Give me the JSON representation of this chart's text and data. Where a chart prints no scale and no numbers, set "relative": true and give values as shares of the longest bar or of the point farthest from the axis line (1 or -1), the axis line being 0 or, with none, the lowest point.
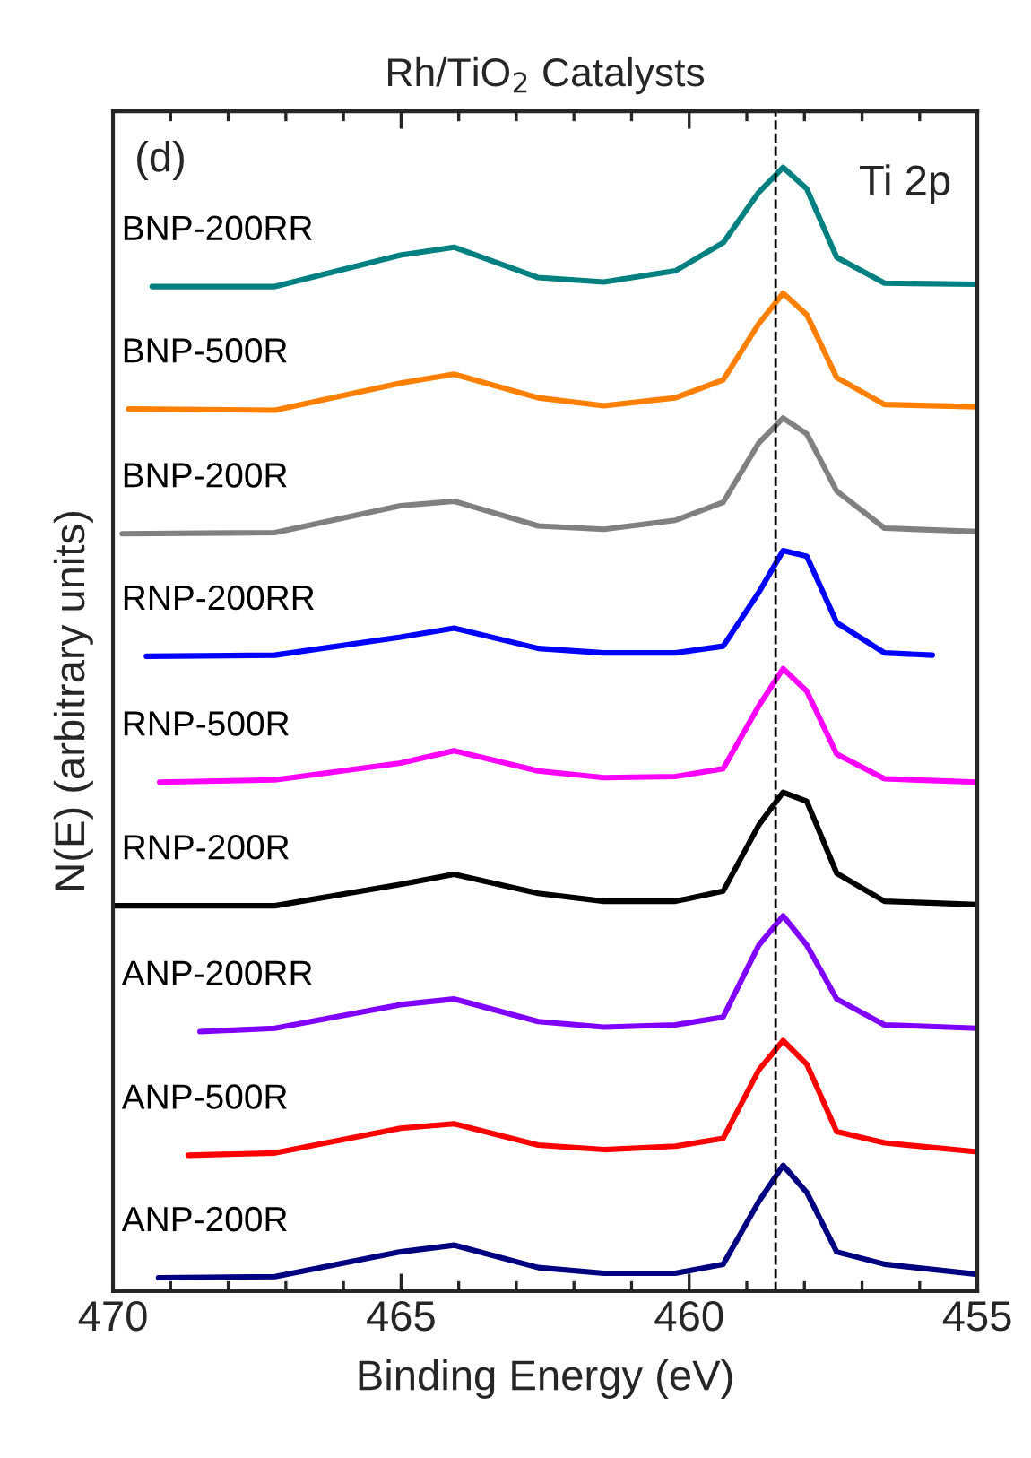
{
  "chart_data": {
    "type": "line",
    "title": "Rh/TiO$_{2}$ Catalysts",
    "xlabel": "Binding Energy (eV)",
    "ylabel": "N(E) (arbitrary units)",
    "relative": true,
    "xlim": [
      470,
      455
    ],
    "xticks": [
      470,
      465,
      460,
      455
    ],
    "grid": false,
    "legend": false,
    "tick_labels": "x",
    "line_style": "solid",
    "marker": "none",
    "annotations": [
      "(d)",
      "Ti 2p"
    ],
    "ref_lines": [
      {
        "axis": "x",
        "value": 458.5,
        "label": null,
        "color": "#000000",
        "line_style": "dashed"
      }
    ],
    "series": [
      {
        "name": "BNP-200RR",
        "color": "#008080",
        "x": [
          469.32,
          467.19,
          465.01,
          464.08,
          462.62,
          461.48,
          460.24,
          459.41,
          458.79,
          458.37,
          457.96,
          457.44,
          456.61,
          455.0
        ],
        "values": [
          0.894,
          0.894,
          0.922,
          0.929,
          0.902,
          0.898,
          0.908,
          0.933,
          0.978,
          1.0,
          0.981,
          0.92,
          0.897,
          0.896
        ]
      },
      {
        "name": "BNP-500R",
        "color": "#ff8000",
        "x": [
          469.73,
          467.19,
          465.01,
          464.08,
          462.62,
          461.48,
          460.24,
          459.41,
          458.79,
          458.37,
          457.96,
          457.44,
          456.61,
          455.0
        ],
        "values": [
          0.785,
          0.784,
          0.808,
          0.816,
          0.795,
          0.788,
          0.795,
          0.811,
          0.861,
          0.888,
          0.869,
          0.813,
          0.789,
          0.787
        ]
      },
      {
        "name": "BNP-200R",
        "color": "#808080",
        "x": [
          469.84,
          467.19,
          465.01,
          464.08,
          462.62,
          461.48,
          460.24,
          459.41,
          458.79,
          458.37,
          457.96,
          457.44,
          456.61,
          455.0
        ],
        "values": [
          0.674,
          0.675,
          0.699,
          0.703,
          0.681,
          0.678,
          0.686,
          0.702,
          0.755,
          0.777,
          0.763,
          0.712,
          0.679,
          0.676
        ]
      },
      {
        "name": "RNP-200RR",
        "color": "#0000ff",
        "x": [
          469.42,
          467.19,
          465.01,
          464.08,
          462.62,
          461.48,
          460.24,
          459.41,
          458.79,
          458.37,
          457.96,
          457.44,
          456.61,
          455.78
        ],
        "values": [
          0.565,
          0.566,
          0.582,
          0.59,
          0.572,
          0.568,
          0.568,
          0.574,
          0.622,
          0.659,
          0.654,
          0.595,
          0.568,
          0.566
        ]
      },
      {
        "name": "RNP-500R",
        "color": "#ff00ff",
        "x": [
          469.19,
          467.19,
          465.01,
          464.08,
          462.62,
          461.48,
          460.24,
          459.41,
          458.79,
          458.37,
          457.96,
          457.44,
          456.61,
          455.0
        ],
        "values": [
          0.453,
          0.455,
          0.47,
          0.481,
          0.463,
          0.457,
          0.458,
          0.465,
          0.521,
          0.554,
          0.534,
          0.478,
          0.456,
          0.453
        ]
      },
      {
        "name": "RNP-200R",
        "color": "#000000",
        "x": [
          470.0,
          467.19,
          465.01,
          464.08,
          462.62,
          461.48,
          460.24,
          459.41,
          458.79,
          458.37,
          457.96,
          457.44,
          456.61,
          455.0
        ],
        "values": [
          0.343,
          0.343,
          0.362,
          0.371,
          0.354,
          0.347,
          0.347,
          0.356,
          0.415,
          0.444,
          0.436,
          0.372,
          0.347,
          0.344
        ]
      },
      {
        "name": "ANP-200RR",
        "color": "#8000ff",
        "x": [
          468.49,
          467.19,
          465.01,
          464.08,
          462.62,
          461.48,
          460.24,
          459.41,
          458.79,
          458.37,
          457.96,
          457.44,
          456.61,
          455.0
        ],
        "values": [
          0.231,
          0.234,
          0.255,
          0.26,
          0.24,
          0.235,
          0.237,
          0.244,
          0.308,
          0.334,
          0.308,
          0.26,
          0.237,
          0.234
        ]
      },
      {
        "name": "ANP-500R",
        "color": "#ff0000",
        "x": [
          468.69,
          467.19,
          465.01,
          464.08,
          462.62,
          461.48,
          460.24,
          459.41,
          458.79,
          458.37,
          457.96,
          457.44,
          456.61,
          455.0
        ],
        "values": [
          0.121,
          0.123,
          0.145,
          0.149,
          0.13,
          0.126,
          0.129,
          0.136,
          0.197,
          0.223,
          0.202,
          0.142,
          0.132,
          0.124
        ]
      },
      {
        "name": "ANP-200R",
        "color": "#000080",
        "x": [
          469.21,
          467.19,
          465.01,
          464.08,
          462.62,
          461.48,
          460.24,
          459.41,
          458.79,
          458.37,
          457.96,
          457.44,
          456.61,
          455.0
        ],
        "values": [
          0.012,
          0.013,
          0.035,
          0.041,
          0.021,
          0.016,
          0.016,
          0.024,
          0.08,
          0.112,
          0.088,
          0.035,
          0.024,
          0.015
        ]
      }
    ]
  }
}
